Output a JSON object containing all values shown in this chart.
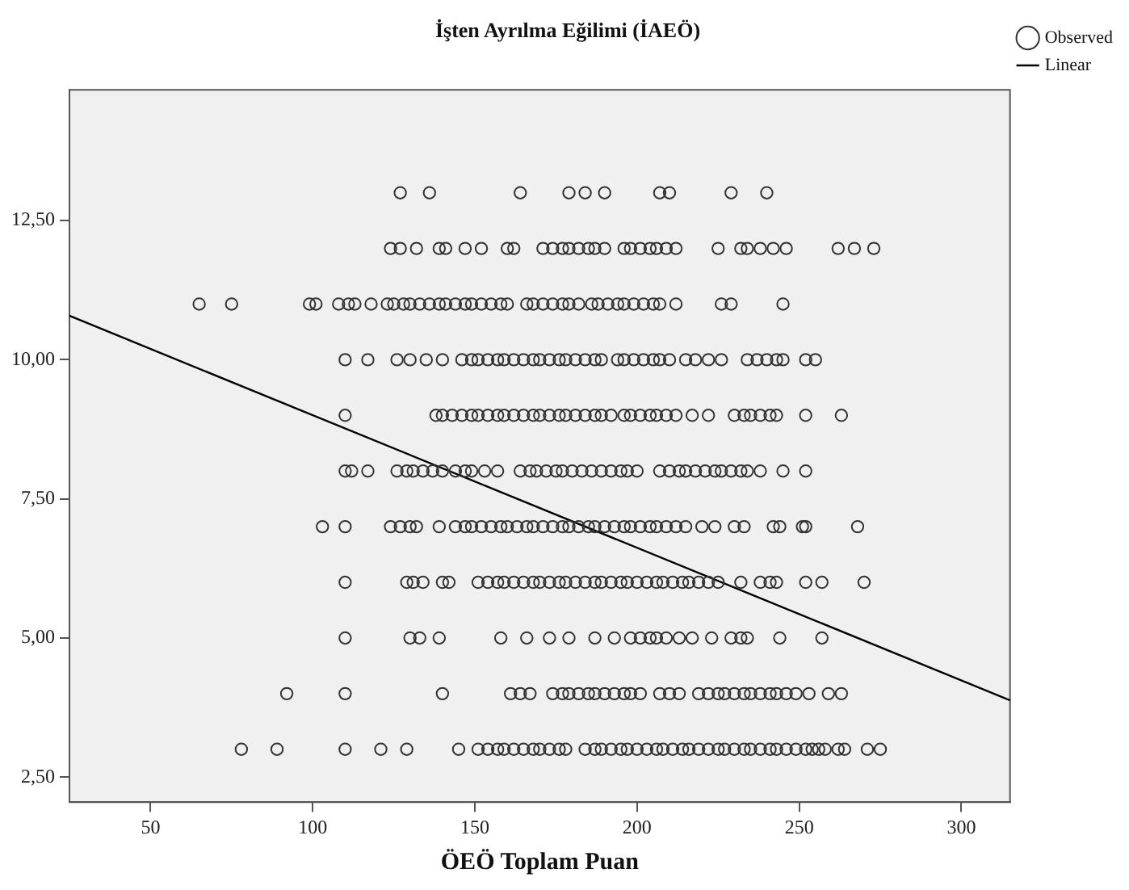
{
  "chart_data": {
    "type": "scatter",
    "title": "İşten Ayrılma Eğilimi (İAEÖ)",
    "xlabel": "ÖEÖ Toplam Puan",
    "xlim": [
      25,
      315
    ],
    "xticks": [
      50,
      100,
      150,
      200,
      250,
      300
    ],
    "ylim": [
      2.05,
      14.85
    ],
    "yticks": [
      {
        "value": 2.5,
        "label": "2,50"
      },
      {
        "value": 5,
        "label": "5,00"
      },
      {
        "value": 7.5,
        "label": "7,50"
      },
      {
        "value": 10,
        "label": "10,00"
      },
      {
        "value": 12.5,
        "label": "12,50"
      }
    ],
    "grid": false,
    "legend": "top right",
    "series": [
      {
        "name": "Observed",
        "type": "scatter",
        "marker": "circle",
        "color": "#333333",
        "x": [
          127,
          136,
          164,
          179,
          184,
          190,
          207,
          210,
          229,
          240,
          124,
          127,
          132,
          139,
          141,
          147,
          152,
          160,
          162,
          171,
          174,
          177,
          179,
          182,
          185,
          187,
          190,
          196,
          198,
          201,
          204,
          206,
          209,
          212,
          225,
          232,
          234,
          238,
          242,
          246,
          262,
          267,
          273,
          65,
          75,
          99,
          101,
          108,
          111,
          113,
          118,
          123,
          125,
          128,
          130,
          133,
          136,
          139,
          141,
          144,
          147,
          149,
          152,
          155,
          158,
          160,
          166,
          168,
          171,
          174,
          177,
          179,
          182,
          186,
          188,
          191,
          194,
          196,
          199,
          202,
          205,
          207,
          212,
          226,
          229,
          245,
          110,
          117,
          126,
          130,
          135,
          140,
          146,
          149,
          151,
          154,
          157,
          159,
          162,
          165,
          168,
          170,
          173,
          176,
          178,
          181,
          184,
          187,
          189,
          194,
          196,
          199,
          202,
          205,
          207,
          210,
          215,
          218,
          222,
          226,
          234,
          237,
          240,
          243,
          245,
          252,
          255,
          110,
          138,
          140,
          143,
          146,
          149,
          151,
          154,
          157,
          159,
          162,
          165,
          168,
          170,
          173,
          176,
          178,
          181,
          184,
          187,
          189,
          192,
          196,
          198,
          201,
          204,
          206,
          209,
          212,
          217,
          222,
          230,
          233,
          235,
          238,
          241,
          243,
          252,
          263,
          110,
          112,
          117,
          126,
          129,
          131,
          134,
          137,
          140,
          144,
          147,
          149,
          153,
          157,
          164,
          167,
          169,
          172,
          175,
          177,
          180,
          183,
          186,
          189,
          192,
          195,
          197,
          200,
          207,
          210,
          213,
          215,
          218,
          221,
          224,
          226,
          229,
          232,
          234,
          238,
          245,
          252,
          103,
          110,
          124,
          127,
          130,
          132,
          139,
          144,
          147,
          149,
          152,
          155,
          158,
          160,
          163,
          166,
          168,
          171,
          174,
          177,
          179,
          182,
          185,
          187,
          190,
          193,
          196,
          198,
          201,
          204,
          206,
          209,
          212,
          215,
          220,
          224,
          230,
          233,
          242,
          244,
          251,
          252,
          268,
          110,
          129,
          131,
          134,
          140,
          142,
          151,
          154,
          157,
          159,
          162,
          165,
          168,
          170,
          173,
          176,
          178,
          181,
          184,
          187,
          189,
          192,
          195,
          197,
          200,
          203,
          206,
          208,
          211,
          214,
          216,
          219,
          222,
          225,
          232,
          238,
          241,
          243,
          252,
          257,
          270,
          110,
          130,
          133,
          139,
          158,
          166,
          173,
          179,
          187,
          193,
          198,
          201,
          204,
          206,
          209,
          213,
          217,
          223,
          229,
          232,
          234,
          244,
          257,
          92,
          110,
          140,
          161,
          164,
          167,
          174,
          177,
          179,
          182,
          185,
          187,
          190,
          193,
          196,
          198,
          201,
          207,
          210,
          213,
          219,
          222,
          225,
          227,
          230,
          233,
          235,
          238,
          241,
          243,
          246,
          249,
          253,
          259,
          263,
          78,
          89,
          110,
          121,
          129,
          145,
          151,
          154,
          157,
          159,
          162,
          165,
          168,
          170,
          173,
          176,
          178,
          184,
          187,
          189,
          192,
          195,
          197,
          200,
          203,
          206,
          208,
          211,
          214,
          216,
          219,
          222,
          225,
          227,
          230,
          233,
          235,
          238,
          241,
          243,
          246,
          249,
          252,
          254,
          256,
          258,
          262,
          264,
          271,
          275
        ],
        "values": [
          13,
          13,
          13,
          13,
          13,
          13,
          13,
          13,
          13,
          13,
          12,
          12,
          12,
          12,
          12,
          12,
          12,
          12,
          12,
          12,
          12,
          12,
          12,
          12,
          12,
          12,
          12,
          12,
          12,
          12,
          12,
          12,
          12,
          12,
          12,
          12,
          12,
          12,
          12,
          12,
          12,
          12,
          12,
          11,
          11,
          11,
          11,
          11,
          11,
          11,
          11,
          11,
          11,
          11,
          11,
          11,
          11,
          11,
          11,
          11,
          11,
          11,
          11,
          11,
          11,
          11,
          11,
          11,
          11,
          11,
          11,
          11,
          11,
          11,
          11,
          11,
          11,
          11,
          11,
          11,
          11,
          11,
          11,
          11,
          11,
          11,
          10,
          10,
          10,
          10,
          10,
          10,
          10,
          10,
          10,
          10,
          10,
          10,
          10,
          10,
          10,
          10,
          10,
          10,
          10,
          10,
          10,
          10,
          10,
          10,
          10,
          10,
          10,
          10,
          10,
          10,
          10,
          10,
          10,
          10,
          10,
          10,
          10,
          10,
          10,
          10,
          10,
          9,
          9,
          9,
          9,
          9,
          9,
          9,
          9,
          9,
          9,
          9,
          9,
          9,
          9,
          9,
          9,
          9,
          9,
          9,
          9,
          9,
          9,
          9,
          9,
          9,
          9,
          9,
          9,
          9,
          9,
          9,
          9,
          9,
          9,
          9,
          9,
          9,
          9,
          9,
          8,
          8,
          8,
          8,
          8,
          8,
          8,
          8,
          8,
          8,
          8,
          8,
          8,
          8,
          8,
          8,
          8,
          8,
          8,
          8,
          8,
          8,
          8,
          8,
          8,
          8,
          8,
          8,
          8,
          8,
          8,
          8,
          8,
          8,
          8,
          8,
          8,
          8,
          8,
          8,
          8,
          8,
          7,
          7,
          7,
          7,
          7,
          7,
          7,
          7,
          7,
          7,
          7,
          7,
          7,
          7,
          7,
          7,
          7,
          7,
          7,
          7,
          7,
          7,
          7,
          7,
          7,
          7,
          7,
          7,
          7,
          7,
          7,
          7,
          7,
          7,
          7,
          7,
          7,
          7,
          7,
          7,
          7,
          7,
          7,
          6,
          6,
          6,
          6,
          6,
          6,
          6,
          6,
          6,
          6,
          6,
          6,
          6,
          6,
          6,
          6,
          6,
          6,
          6,
          6,
          6,
          6,
          6,
          6,
          6,
          6,
          6,
          6,
          6,
          6,
          6,
          6,
          6,
          6,
          6,
          6,
          6,
          6,
          6,
          6,
          6,
          5,
          5,
          5,
          5,
          5,
          5,
          5,
          5,
          5,
          5,
          5,
          5,
          5,
          5,
          5,
          5,
          5,
          5,
          5,
          5,
          5,
          5,
          5,
          4,
          4,
          4,
          4,
          4,
          4,
          4,
          4,
          4,
          4,
          4,
          4,
          4,
          4,
          4,
          4,
          4,
          4,
          4,
          4,
          4,
          4,
          4,
          4,
          4,
          4,
          4,
          4,
          4,
          4,
          4,
          4,
          4,
          4,
          4,
          3,
          3,
          3,
          3,
          3,
          3,
          3,
          3,
          3,
          3,
          3,
          3,
          3,
          3,
          3,
          3,
          3,
          3,
          3,
          3,
          3,
          3,
          3,
          3,
          3,
          3,
          3,
          3,
          3,
          3,
          3,
          3,
          3,
          3,
          3,
          3,
          3,
          3,
          3,
          3,
          3,
          3,
          3,
          3,
          3,
          3,
          3,
          3,
          3,
          3
        ]
      },
      {
        "name": "Linear",
        "type": "line",
        "marker": "none",
        "color": "#000000",
        "x": [
          25,
          315
        ],
        "values": [
          10.79,
          3.88
        ]
      }
    ]
  }
}
